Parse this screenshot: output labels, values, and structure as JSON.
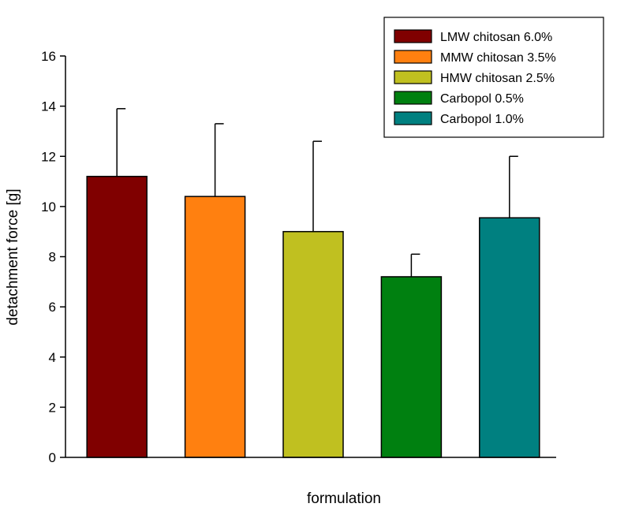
{
  "chart_data": {
    "type": "bar",
    "title": "",
    "xlabel": "formulation",
    "ylabel": "detachment force [g]",
    "ylim": [
      0,
      16
    ],
    "yticks": [
      0,
      2,
      4,
      6,
      8,
      10,
      12,
      14,
      16
    ],
    "ytick_labels": [
      "0",
      "2",
      "4",
      "6",
      "8",
      "10",
      "12",
      "14",
      "16"
    ],
    "grid": false,
    "legend_position": "top-right",
    "bars": [
      {
        "name": "LMW chitosan 6.0%",
        "value": 11.2,
        "error": 2.7,
        "color": "#800000"
      },
      {
        "name": "MMW chitosan 3.5%",
        "value": 10.4,
        "error": 2.9,
        "color": "#ff8010"
      },
      {
        "name": "HMW chitosan 2.5%",
        "value": 9.0,
        "error": 3.6,
        "color": "#c0c020"
      },
      {
        "name": "Carbopol 0.5%",
        "value": 7.2,
        "error": 0.9,
        "color": "#008010"
      },
      {
        "name": "Carbopol 1.0%",
        "value": 9.55,
        "error": 2.45,
        "color": "#008080"
      }
    ]
  }
}
